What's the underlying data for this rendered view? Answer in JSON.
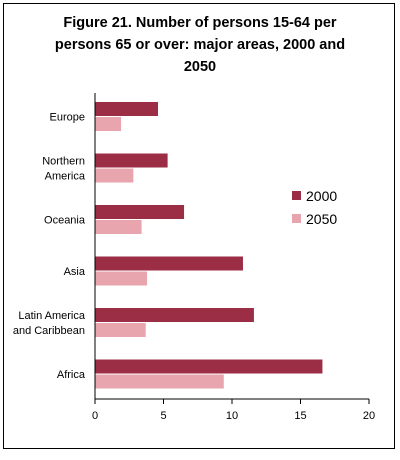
{
  "chart_data": {
    "type": "bar",
    "orientation": "horizontal",
    "title": "Figure 21.  Number of persons 15-64 per persons 65 or over: major areas, 2000 and 2050",
    "categories": [
      [
        "Europe"
      ],
      [
        "Northern",
        "America"
      ],
      [
        "Oceania"
      ],
      [
        "Asia"
      ],
      [
        "Latin America",
        "and Caribbean"
      ],
      [
        "Africa"
      ]
    ],
    "series": [
      {
        "name": "2000",
        "color": "#9b2d45",
        "values": [
          4.6,
          5.3,
          6.5,
          10.8,
          11.6,
          16.6
        ]
      },
      {
        "name": "2050",
        "color": "#e8a5ad",
        "values": [
          1.9,
          2.8,
          3.4,
          3.8,
          3.7,
          9.4
        ]
      }
    ],
    "xlim": [
      0,
      20
    ],
    "xticks": [
      "0",
      "5",
      "10",
      "15",
      "20"
    ],
    "legend_position": "right",
    "grid": false
  }
}
